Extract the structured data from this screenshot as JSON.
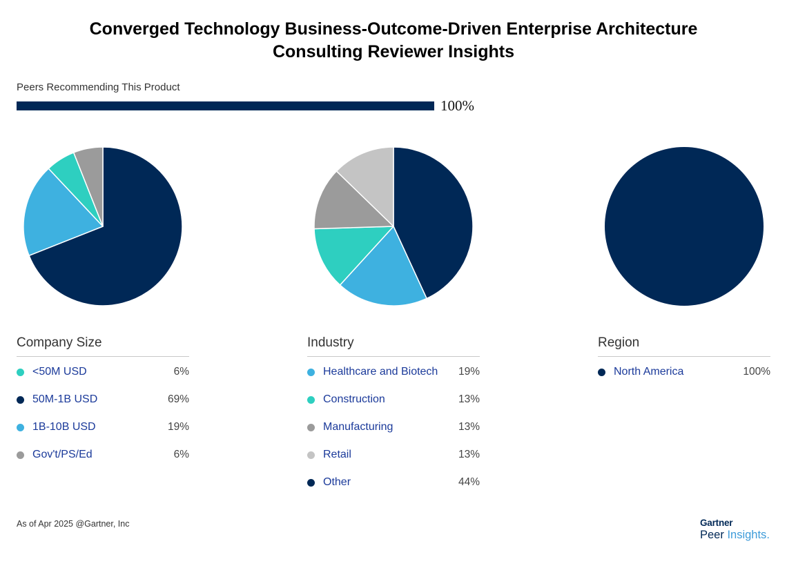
{
  "title": {
    "line1": "Converged Technology Business-Outcome-Driven Enterprise Architecture",
    "line2": "Consulting Reviewer Insights"
  },
  "recommend": {
    "label": "Peers Recommending This Product",
    "value_text": "100%",
    "fraction": 1.0,
    "bar_color": "#002856"
  },
  "chart_data": [
    {
      "type": "pie",
      "title": "Company Size",
      "slices": [
        {
          "label": "<50M USD",
          "value": 6,
          "value_text": "6%",
          "color": "#2ecfc0"
        },
        {
          "label": "50M-1B USD",
          "value": 69,
          "value_text": "69%",
          "color": "#002856"
        },
        {
          "label": "1B-10B USD",
          "value": 19,
          "value_text": "19%",
          "color": "#3eb1e0"
        },
        {
          "label": "Gov't/PS/Ed",
          "value": 6,
          "value_text": "6%",
          "color": "#9b9b9b"
        }
      ],
      "draw_order": [
        1,
        2,
        0,
        3
      ]
    },
    {
      "type": "pie",
      "title": "Industry",
      "slices": [
        {
          "label": "Healthcare and Biotech",
          "value": 19,
          "value_text": "19%",
          "color": "#3eb1e0"
        },
        {
          "label": "Construction",
          "value": 13,
          "value_text": "13%",
          "color": "#2ecfc0"
        },
        {
          "label": "Manufacturing",
          "value": 13,
          "value_text": "13%",
          "color": "#9b9b9b"
        },
        {
          "label": "Retail",
          "value": 13,
          "value_text": "13%",
          "color": "#c4c4c4"
        },
        {
          "label": "Other",
          "value": 44,
          "value_text": "44%",
          "color": "#002856"
        }
      ],
      "draw_order": [
        4,
        0,
        1,
        2,
        3
      ]
    },
    {
      "type": "pie",
      "title": "Region",
      "slices": [
        {
          "label": "North America",
          "value": 100,
          "value_text": "100%",
          "color": "#002856"
        }
      ],
      "draw_order": [
        0
      ]
    }
  ],
  "footer": "As of Apr 2025 @Gartner, Inc",
  "logo": {
    "brand": "Gartner",
    "product_a": "Peer ",
    "product_b": "Insights",
    "product_c": "."
  }
}
